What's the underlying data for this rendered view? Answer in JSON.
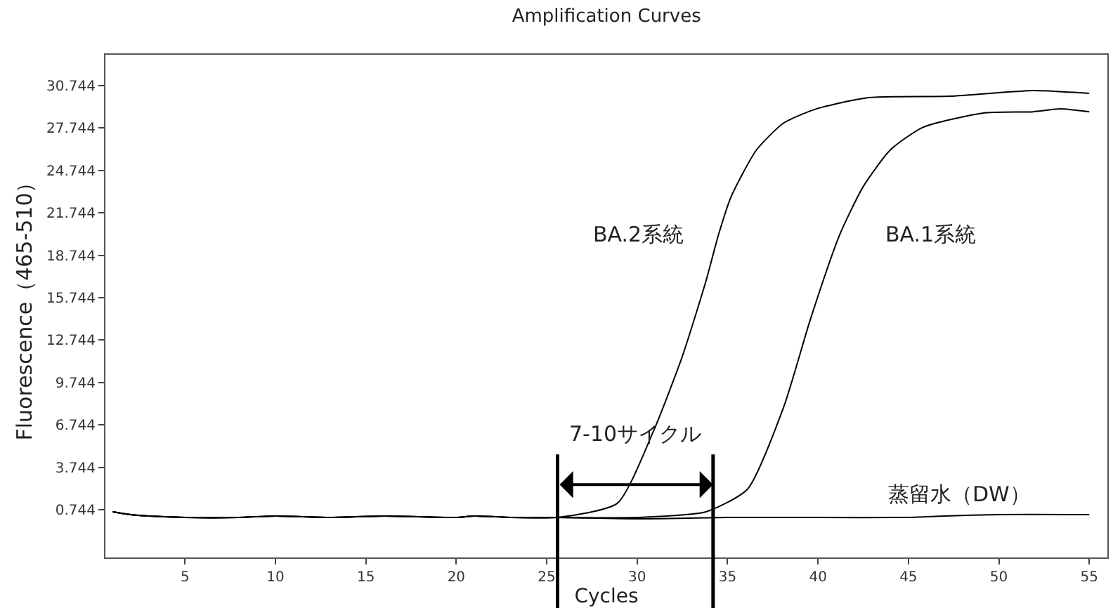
{
  "chart_data": {
    "type": "line",
    "title": "Amplification Curves",
    "xlabel": "Cycles",
    "ylabel": "Fluorescence（465-510）",
    "x": [
      1,
      2,
      3,
      5,
      8,
      10,
      13,
      16,
      20,
      21,
      23,
      25.6,
      28.9,
      30.9,
      32.5,
      33.8,
      34.5,
      35.2,
      36.6,
      38.1,
      39.9,
      42.8,
      47.3,
      51.9,
      55
    ],
    "series": [
      {
        "name": "BA.2系統",
        "color": "#000000",
        "values": [
          0.6,
          0.4,
          0.3,
          0.2,
          0.2,
          0.3,
          0.2,
          0.3,
          0.2,
          0.3,
          0.2,
          0.2,
          1.2,
          6.3,
          11.6,
          16.9,
          20.2,
          22.9,
          26.2,
          28.1,
          29.1,
          29.9,
          30.0,
          30.4,
          30.2
        ]
      },
      {
        "name": "BA.1系統",
        "color": "#000000",
        "x": [
          1,
          2,
          3,
          5,
          8,
          10,
          13,
          16,
          20,
          21,
          23,
          25.6,
          30,
          33.8,
          36.1,
          38.1,
          39.6,
          41.2,
          42.5,
          44.0,
          45.8,
          49.1,
          51.9,
          53.4,
          55
        ],
        "values": [
          0.6,
          0.4,
          0.3,
          0.2,
          0.2,
          0.3,
          0.2,
          0.3,
          0.2,
          0.3,
          0.2,
          0.2,
          0.2,
          0.6,
          2.2,
          8.0,
          14.3,
          20.2,
          23.6,
          26.2,
          27.8,
          28.8,
          28.9,
          29.1,
          28.9
        ]
      },
      {
        "name": "蒸留水（DW）",
        "color": "#000000",
        "x": [
          1,
          2,
          3,
          5,
          8,
          10,
          13,
          16,
          20,
          21,
          23,
          25.6,
          30,
          35,
          40,
          45,
          47,
          50,
          55
        ],
        "values": [
          0.6,
          0.4,
          0.3,
          0.2,
          0.2,
          0.3,
          0.2,
          0.3,
          0.2,
          0.3,
          0.2,
          0.2,
          0.1,
          0.2,
          0.2,
          0.2,
          0.3,
          0.4,
          0.4
        ]
      }
    ],
    "annotations": [
      "7-10サイクル"
    ],
    "ref_lines": [
      {
        "axis": "x",
        "value": 25.6,
        "color": "#000000"
      },
      {
        "axis": "x",
        "value": 34.2,
        "color": "#000000"
      }
    ],
    "xlim": [
      0.6,
      56
    ],
    "ylim": [
      -2.63,
      32.93
    ],
    "xticks": [
      5,
      10,
      15,
      20,
      25,
      30,
      35,
      40,
      45,
      50,
      55
    ],
    "yticks": [
      0.744,
      3.744,
      6.744,
      9.744,
      12.744,
      15.744,
      18.744,
      21.744,
      24.744,
      27.744,
      30.744
    ],
    "grid": false,
    "legend": false,
    "marker": "none",
    "line_style": "solid"
  }
}
